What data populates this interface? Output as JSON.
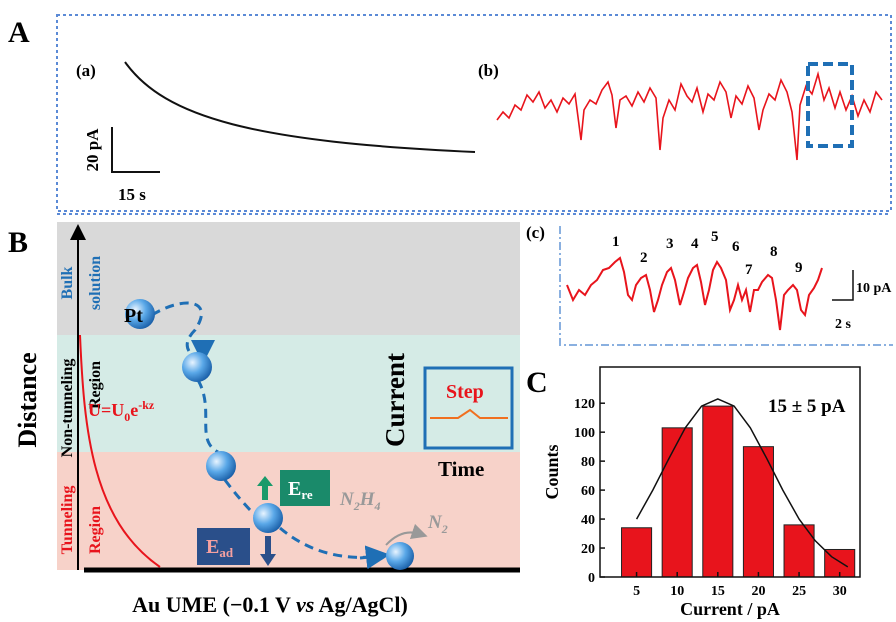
{
  "panel_labels": [
    "A",
    "B",
    "C"
  ],
  "panel_a": {
    "sub_a": "(a)",
    "sub_b": "(b)",
    "scale_y": "20 pA",
    "scale_x": "15 s"
  },
  "panel_b": {
    "bulk": [
      "Bulk",
      "solution"
    ],
    "non_tunneling": [
      "Non-tunneling",
      "Region"
    ],
    "tunneling": [
      "Tunneling",
      "Region"
    ],
    "distance": "Distance",
    "pt": "Pt",
    "formula": [
      "U=U",
      "0",
      "e",
      "-kz"
    ],
    "current": "Current",
    "step": "Step",
    "time": "Time",
    "e_re": [
      "E",
      "re"
    ],
    "e_ad": [
      "E",
      "ad"
    ],
    "n2h4": [
      "N",
      "2",
      "H",
      "4"
    ],
    "n2": [
      "N",
      "2"
    ],
    "electrode": [
      "Au UME (−0.1 V ",
      "vs",
      " Ag/AgCl)"
    ]
  },
  "panel_c": {
    "label": "(c)",
    "peaks": [
      "1",
      "2",
      "3",
      "4",
      "5",
      "6",
      "7",
      "8",
      "9"
    ],
    "scale_y": "10 pA",
    "scale_x": "2 s"
  },
  "chart_data": {
    "type": "bar",
    "x": [
      5,
      10,
      15,
      20,
      25,
      30
    ],
    "values": [
      34,
      103,
      118,
      90,
      36,
      19
    ],
    "color": "#e8141c",
    "xlim": [
      0.5,
      32.5
    ],
    "xticks": [
      5,
      10,
      15,
      20,
      25,
      30
    ],
    "ylim": [
      0,
      145
    ],
    "yticks": [
      0,
      20,
      40,
      60,
      80,
      100,
      120
    ],
    "xlabel": "Current / pA",
    "ylabel": "Counts",
    "annotation": "15 ± 5 pA",
    "fit_line": {
      "x": [
        5,
        7,
        9,
        11,
        13,
        15,
        17,
        19,
        21,
        23,
        25,
        27,
        29,
        31
      ],
      "values": [
        40,
        60,
        82,
        103,
        118,
        123,
        118,
        103,
        82,
        60,
        40,
        25,
        14,
        7
      ]
    }
  }
}
